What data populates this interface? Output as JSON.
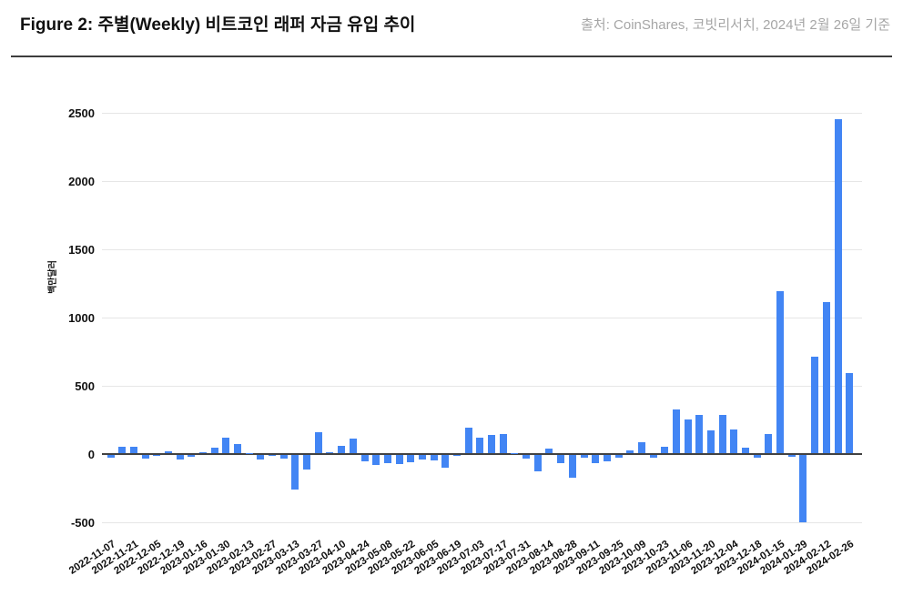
{
  "header": {
    "title": "Figure 2: 주별(Weekly) 비트코인 래퍼 자금 유입 추이",
    "source": "출처: CoinShares, 코빗리서치, 2024년 2월 26일 기준"
  },
  "chart_data": {
    "type": "bar",
    "title": "주별(Weekly) 비트코인 래퍼 자금 유입 추이",
    "ylabel": "백만달러",
    "xlabel": "",
    "ylim": [
      -500,
      2500
    ],
    "y_ticks": [
      2500,
      2000,
      1500,
      1000,
      500,
      0,
      -500
    ],
    "grid": true,
    "legend": "none",
    "bar_color": "#4285f4",
    "x": [
      "2022-11-07",
      "2022-11-14",
      "2022-11-21",
      "2022-11-28",
      "2022-12-05",
      "2022-12-12",
      "2022-12-19",
      "2023-01-09",
      "2023-01-16",
      "2023-01-23",
      "2023-01-30",
      "2023-02-06",
      "2023-02-13",
      "2023-02-20",
      "2023-02-27",
      "2023-03-06",
      "2023-03-13",
      "2023-03-20",
      "2023-03-27",
      "2023-04-03",
      "2023-04-10",
      "2023-04-17",
      "2023-04-24",
      "2023-05-01",
      "2023-05-08",
      "2023-05-15",
      "2023-05-22",
      "2023-05-29",
      "2023-06-05",
      "2023-06-12",
      "2023-06-19",
      "2023-06-26",
      "2023-07-03",
      "2023-07-10",
      "2023-07-17",
      "2023-07-24",
      "2023-07-31",
      "2023-08-07",
      "2023-08-14",
      "2023-08-21",
      "2023-08-28",
      "2023-09-04",
      "2023-09-11",
      "2023-09-18",
      "2023-09-25",
      "2023-10-02",
      "2023-10-09",
      "2023-10-16",
      "2023-10-23",
      "2023-10-30",
      "2023-11-06",
      "2023-11-13",
      "2023-11-20",
      "2023-11-27",
      "2023-12-04",
      "2023-12-11",
      "2023-12-18",
      "2024-01-08",
      "2024-01-15",
      "2024-01-22",
      "2024-01-29",
      "2024-02-05",
      "2024-02-12",
      "2024-02-19",
      "2024-02-26"
    ],
    "values": [
      -22,
      45,
      45,
      -28,
      -8,
      12,
      -30,
      -10,
      10,
      40,
      115,
      67,
      3,
      -33,
      -6,
      -28,
      -250,
      -105,
      155,
      4,
      55,
      110,
      -44,
      -73,
      -62,
      -67,
      -56,
      -33,
      -40,
      -90,
      -5,
      189,
      115,
      133,
      138,
      2,
      -24,
      -118,
      31,
      -62,
      -169,
      -18,
      -62,
      -44,
      -18,
      22,
      78,
      -18,
      45,
      320,
      250,
      282,
      167,
      278,
      171,
      40,
      -20,
      140,
      1190,
      -16,
      -490,
      705,
      1110,
      2450,
      590
    ],
    "x_tick_labels": [
      "2022-11-07",
      "2022-11-21",
      "2022-12-05",
      "2022-12-19",
      "2023-01-16",
      "2023-01-30",
      "2023-02-13",
      "2023-02-27",
      "2023-03-13",
      "2023-03-27",
      "2023-04-10",
      "2023-04-24",
      "2023-05-08",
      "2023-05-22",
      "2023-06-05",
      "2023-06-19",
      "2023-07-03",
      "2023-07-17",
      "2023-07-31",
      "2023-08-14",
      "2023-08-28",
      "2023-09-11",
      "2023-09-25",
      "2023-10-09",
      "2023-10-23",
      "2023-11-06",
      "2023-11-20",
      "2023-12-04",
      "2023-12-18",
      "2024-01-15",
      "2024-01-29",
      "2024-02-12",
      "2024-02-26"
    ]
  }
}
